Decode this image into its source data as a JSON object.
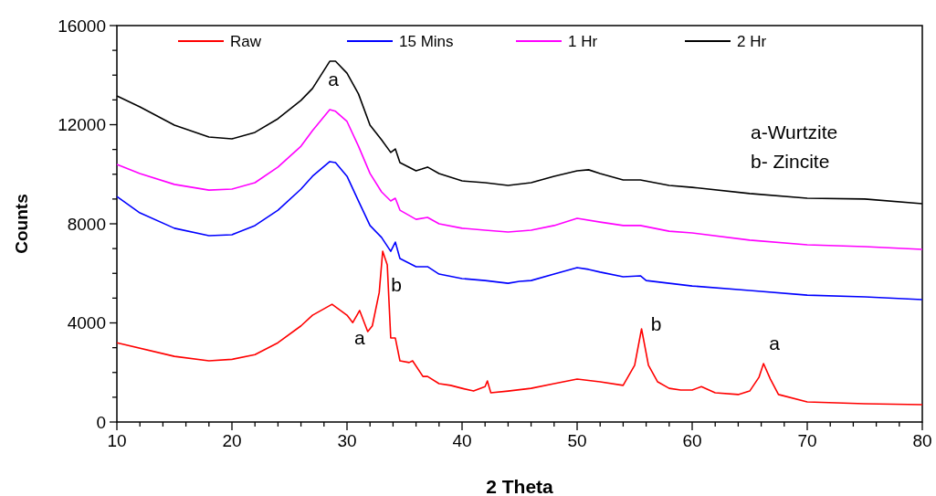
{
  "chart_data": {
    "type": "line",
    "xlabel": "2 Theta",
    "ylabel": "Counts",
    "xlim": [
      10,
      80
    ],
    "ylim": [
      0,
      16000
    ],
    "xticks": [
      10,
      {
        "value": 12,
        "label": null
      },
      {
        "value": 14,
        "label": null
      },
      {
        "value": 16,
        "label": null
      },
      {
        "value": 18,
        "label": null
      },
      20,
      {
        "value": 22,
        "label": null
      },
      {
        "value": 24,
        "label": null
      },
      {
        "value": 26,
        "label": null
      },
      {
        "value": 28,
        "label": null
      },
      30,
      {
        "value": 32,
        "label": null
      },
      {
        "value": 34,
        "label": null
      },
      {
        "value": 36,
        "label": null
      },
      {
        "value": 38,
        "label": null
      },
      40,
      {
        "value": 42,
        "label": null
      },
      {
        "value": 44,
        "label": null
      },
      {
        "value": 46,
        "label": null
      },
      {
        "value": 48,
        "label": null
      },
      50,
      {
        "value": 52,
        "label": null
      },
      {
        "value": 54,
        "label": null
      },
      {
        "value": 56,
        "label": null
      },
      {
        "value": 58,
        "label": null
      },
      60,
      {
        "value": 62,
        "label": null
      },
      {
        "value": 64,
        "label": null
      },
      {
        "value": 66,
        "label": null
      },
      {
        "value": 68,
        "label": null
      },
      70,
      {
        "value": 72,
        "label": null
      },
      {
        "value": 74,
        "label": null
      },
      {
        "value": 76,
        "label": null
      },
      {
        "value": 78,
        "label": null
      },
      80
    ],
    "yticks": [
      0,
      {
        "value": 1000,
        "label": null
      },
      {
        "value": 2000,
        "label": null
      },
      {
        "value": 3000,
        "label": null
      },
      4000,
      {
        "value": 5000,
        "label": null
      },
      {
        "value": 6000,
        "label": null
      },
      {
        "value": 7000,
        "label": null
      },
      8000,
      {
        "value": 9000,
        "label": null
      },
      {
        "value": 10000,
        "label": null
      },
      {
        "value": 11000,
        "label": null
      },
      12000,
      {
        "value": 13000,
        "label": null
      },
      {
        "value": 14000,
        "label": null
      },
      {
        "value": 15000,
        "label": null
      },
      16000
    ],
    "grid": false,
    "legend": "top",
    "marker": "none",
    "line_style": "solid",
    "series": [
      {
        "name": "Raw",
        "color": "#ff0000",
        "x": [
          10,
          15,
          18,
          20,
          22,
          24,
          26,
          27,
          28.7,
          30,
          30.5,
          31.1,
          31.8,
          32.2,
          32.8,
          33.1,
          33.5,
          33.8,
          34.2,
          34.6,
          35.4,
          35.7,
          36.6,
          37,
          38,
          39,
          40,
          41,
          42,
          42.2,
          42.5,
          44,
          46,
          48,
          50,
          52,
          54,
          55,
          55.6,
          56.2,
          57,
          58,
          59,
          60,
          60.8,
          62,
          64,
          65,
          65.8,
          66.2,
          66.8,
          67.5,
          70,
          75,
          80
        ],
        "values": [
          3200,
          2650,
          2470,
          2530,
          2720,
          3200,
          3880,
          4310,
          4750,
          4310,
          4010,
          4500,
          3650,
          3880,
          5230,
          6890,
          6340,
          3390,
          3390,
          2470,
          2400,
          2470,
          1840,
          1840,
          1550,
          1480,
          1360,
          1250,
          1430,
          1660,
          1180,
          1250,
          1360,
          1550,
          1730,
          1620,
          1480,
          2290,
          3760,
          2290,
          1620,
          1360,
          1290,
          1290,
          1430,
          1180,
          1110,
          1250,
          1800,
          2360,
          1730,
          1110,
          810,
          740,
          700
        ]
      },
      {
        "name": "15 Mins",
        "color": "#0000ff",
        "x": [
          10,
          12,
          15,
          18,
          20,
          22,
          24,
          26,
          27,
          28.5,
          29,
          30,
          31,
          32,
          33,
          33.8,
          34.2,
          34.6,
          36,
          37,
          38,
          40,
          42,
          44,
          45,
          46,
          48,
          50,
          51,
          52,
          54,
          55.5,
          56,
          58,
          60,
          65,
          70,
          75,
          80
        ],
        "values": [
          9100,
          8440,
          7820,
          7520,
          7560,
          7930,
          8550,
          9400,
          9920,
          10510,
          10470,
          9920,
          8920,
          7930,
          7450,
          6890,
          7260,
          6600,
          6270,
          6270,
          5970,
          5790,
          5710,
          5600,
          5680,
          5710,
          5970,
          6230,
          6160,
          6050,
          5860,
          5900,
          5710,
          5600,
          5490,
          5310,
          5120,
          5050,
          4940
        ]
      },
      {
        "name": "1 Hr",
        "color": "#ff00ff",
        "x": [
          10,
          12,
          15,
          18,
          20,
          22,
          24,
          26,
          27,
          28.5,
          29,
          30,
          31,
          32,
          33,
          33.8,
          34.2,
          34.6,
          36,
          37,
          38,
          40,
          42,
          44,
          46,
          48,
          50,
          52,
          54,
          55.5,
          58,
          60,
          65,
          70,
          75,
          80
        ],
        "values": [
          10400,
          10030,
          9590,
          9360,
          9400,
          9660,
          10290,
          11130,
          11760,
          12610,
          12540,
          12130,
          11130,
          10030,
          9290,
          8920,
          9030,
          8550,
          8180,
          8260,
          8000,
          7820,
          7740,
          7670,
          7740,
          7930,
          8220,
          8070,
          7930,
          7930,
          7700,
          7630,
          7340,
          7150,
          7080,
          6970
        ]
      },
      {
        "name": "2 Hr",
        "color": "#000000",
        "x": [
          10,
          12,
          15,
          18,
          20,
          22,
          24,
          26,
          27,
          28.5,
          29,
          30,
          31,
          32,
          33,
          33.8,
          34.2,
          34.6,
          36,
          36.5,
          37,
          38,
          40,
          42,
          44,
          46,
          48,
          50,
          51,
          52,
          54,
          55.5,
          58,
          60,
          65,
          70,
          75,
          80
        ],
        "values": [
          13160,
          12720,
          11980,
          11500,
          11430,
          11690,
          12240,
          12980,
          13460,
          14560,
          14560,
          14080,
          13240,
          11980,
          11390,
          10880,
          11020,
          10470,
          10140,
          10210,
          10290,
          10030,
          9730,
          9660,
          9550,
          9660,
          9920,
          10140,
          10180,
          10030,
          9770,
          9770,
          9550,
          9470,
          9220,
          9030,
          9000,
          8810
        ]
      }
    ],
    "annotations": [
      "a-Wurtzite",
      "b- Zincite",
      {
        "text": "a",
        "x": 28.5,
        "y": 14560
      },
      {
        "text": "a",
        "x": 31.1,
        "y": 4500
      },
      {
        "text": "b",
        "x": 33.1,
        "y": 6890
      },
      {
        "text": "b",
        "x": 55.6,
        "y": 3760
      },
      {
        "text": "a",
        "x": 66.2,
        "y": 2360
      }
    ]
  }
}
